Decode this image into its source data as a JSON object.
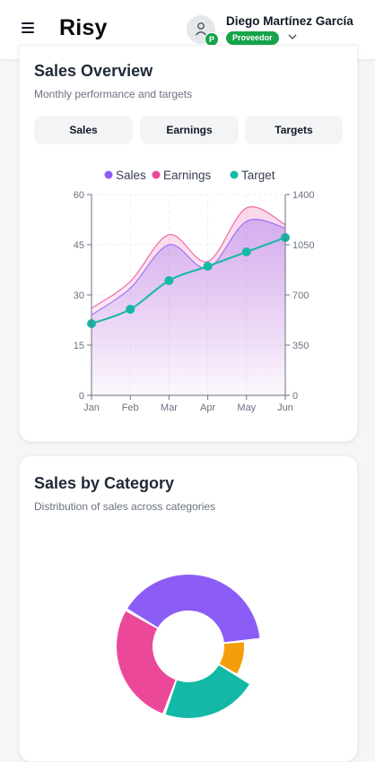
{
  "header": {
    "brand": "Risy",
    "user_name": "Diego Martínez García",
    "role": "Proveedor",
    "avatar_badge": "P",
    "icons": [
      "menu-icon",
      "user-icon",
      "chevron-down-icon"
    ]
  },
  "sales_overview": {
    "title": "Sales Overview",
    "subtitle": "Monthly performance and targets",
    "tabs": [
      "Sales",
      "Earnings",
      "Targets"
    ]
  },
  "sales_by_category": {
    "title": "Sales by Category",
    "subtitle": "Distribution of sales across categories"
  },
  "colors": {
    "sales": "#8b5cf6",
    "earnings": "#ec4899",
    "target": "#14b8a6",
    "category_1": "#8b5cf6",
    "category_2": "#f59e0b",
    "category_3": "#14b8a6",
    "category_4": "#ec4899",
    "badge": "#16a34a"
  },
  "chart_data": [
    {
      "type": "area",
      "categories": [
        "Jan",
        "Feb",
        "Mar",
        "Apr",
        "May",
        "Jun"
      ],
      "series": [
        {
          "name": "Sales",
          "axis": "left",
          "values": [
            24,
            32,
            45,
            38,
            52,
            50
          ]
        },
        {
          "name": "Earnings",
          "axis": "left",
          "values": [
            26,
            34,
            48,
            40,
            56,
            51
          ]
        },
        {
          "name": "Target",
          "axis": "right",
          "values": [
            500,
            600,
            800,
            900,
            1000,
            1100
          ]
        }
      ],
      "y_left_ticks": [
        "0",
        "15",
        "30",
        "45",
        "60"
      ],
      "y_right_ticks": [
        "0",
        "350",
        "700",
        "1050",
        "1400"
      ],
      "ylim_left": [
        0,
        60
      ],
      "ylim_right": [
        0,
        1400
      ],
      "legend": "top",
      "grid": true
    },
    {
      "type": "pie",
      "donut": true,
      "slices": [
        {
          "value": 40,
          "color": "#8b5cf6"
        },
        {
          "value": 10,
          "color": "#f59e0b"
        },
        {
          "value": 22,
          "color": "#14b8a6"
        },
        {
          "value": 28,
          "color": "#ec4899"
        }
      ]
    }
  ]
}
